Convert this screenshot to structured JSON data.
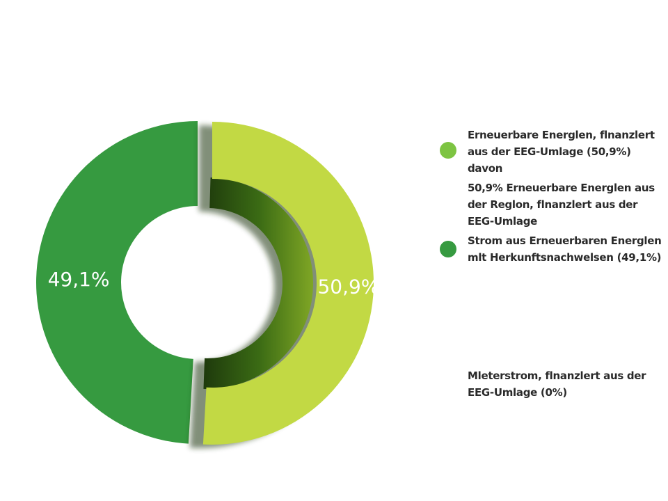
{
  "chart_data": {
    "type": "pie",
    "style": "donut",
    "slices": [
      {
        "name": "Erneuerbare Energien, finanziert aus der EEG-Umlage (50,9%)",
        "value": 50.9,
        "label": "50,9%",
        "color": "#c2d944"
      },
      {
        "name": "Strom aus Erneuerbaren Energien mit Herkunftsnachweisen (49,1%)",
        "value": 49.1,
        "label": "49,1%",
        "color": "#369a40"
      }
    ],
    "legend_position": "right"
  },
  "legend": {
    "items": [
      {
        "text": "Erneuerbare Energlen, flnanzlert aus der EEG-Umlage (50,9%) davon",
        "color": "#7dc442",
        "has_dot": true
      },
      {
        "text": "50,9% Erneuerbare Energlen aus der Reglon, flnanzlert aus der EEG-Umlage",
        "color": "",
        "has_dot": false
      },
      {
        "text": "Strom aus Erneuerbaren Energlen mlt Herkunftsnachwelsen (49,1%)",
        "color": "#369a40",
        "has_dot": true
      },
      {
        "text": "Mleterstrom, flnanzlert aus der EEG-Umlage (0%)",
        "color": "",
        "has_dot": false
      }
    ]
  }
}
